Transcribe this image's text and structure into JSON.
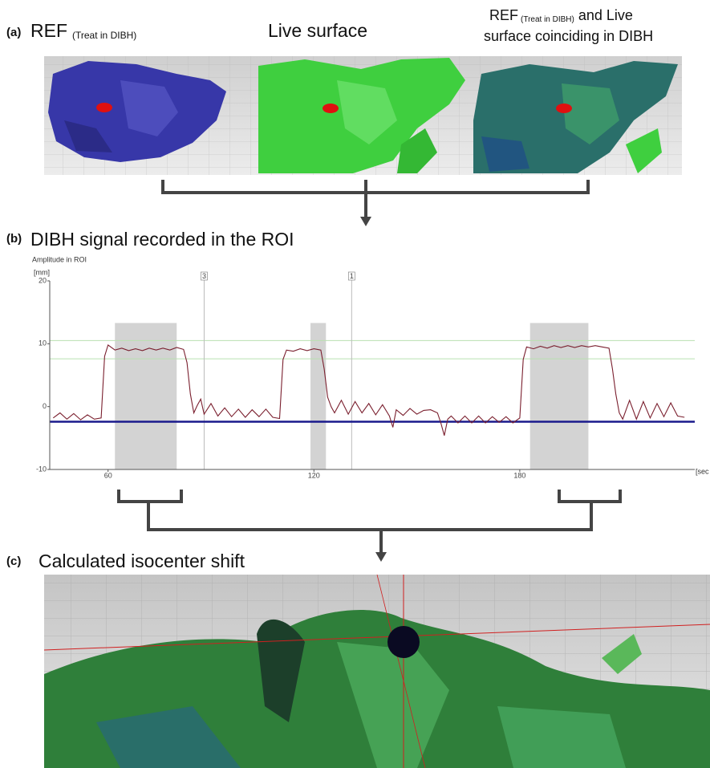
{
  "panel_a": {
    "label": "(a)",
    "ref_title": "REF",
    "ref_subscript": "(Treat in DIBH)",
    "live_title": "Live surface",
    "overlay_title_1": "REF",
    "overlay_subscript": "(Treat in DIBH)",
    "overlay_title_2": "and Live",
    "overlay_title_3": "surface coinciding in DIBH"
  },
  "panel_b": {
    "label": "(b)",
    "title": "DIBH signal recorded in the ROI"
  },
  "chart_data": {
    "type": "line",
    "y_axis_label": "Amplitude in ROI",
    "y_unit": "[mm]",
    "x_unit": "[sec",
    "xlim": [
      43,
      231
    ],
    "ylim": [
      -10,
      20
    ],
    "xticks": [
      60,
      120,
      180
    ],
    "yticks": [
      -10,
      0,
      10,
      20
    ],
    "x": [
      44,
      46,
      48,
      50,
      52,
      54,
      56,
      58,
      59,
      60,
      62,
      64,
      66,
      68,
      70,
      72,
      74,
      76,
      78,
      80,
      82,
      83,
      84,
      85,
      86,
      87,
      88,
      90,
      92,
      94,
      96,
      98,
      100,
      102,
      104,
      106,
      108,
      110,
      111,
      112,
      114,
      116,
      118,
      120,
      122,
      123,
      124,
      125,
      126,
      128,
      130,
      132,
      134,
      136,
      138,
      140,
      142,
      143,
      144,
      146,
      148,
      150,
      152,
      154,
      156,
      157,
      158,
      159,
      160,
      162,
      164,
      166,
      168,
      170,
      172,
      174,
      176,
      178,
      180,
      181,
      182,
      184,
      186,
      188,
      190,
      192,
      194,
      196,
      198,
      200,
      202,
      204,
      206,
      207,
      208,
      209,
      210,
      212,
      214,
      216,
      218,
      220,
      222,
      224,
      226,
      228
    ],
    "series": [
      {
        "color": "#7a1f2e",
        "values": [
          -1.8,
          -1.0,
          -2.0,
          -1.1,
          -2.1,
          -1.3,
          -2.0,
          -1.8,
          8.0,
          9.8,
          9.0,
          9.3,
          8.9,
          9.2,
          8.9,
          9.3,
          9.0,
          9.3,
          9.0,
          9.4,
          9.1,
          7.0,
          2.0,
          -1.0,
          0.2,
          1.2,
          -1.2,
          0.5,
          -1.5,
          -0.2,
          -1.6,
          -0.4,
          -1.7,
          -0.5,
          -1.6,
          -0.4,
          -1.7,
          -1.9,
          7.5,
          9.0,
          8.8,
          9.2,
          8.9,
          9.2,
          9.0,
          6.0,
          1.5,
          0.0,
          -1.0,
          1.0,
          -1.2,
          0.8,
          -1.0,
          0.5,
          -1.3,
          0.3,
          -1.5,
          -3.3,
          -0.5,
          -1.4,
          -0.3,
          -1.2,
          -0.6,
          -0.5,
          -1.0,
          -2.6,
          -4.6,
          -2.0,
          -1.5,
          -2.6,
          -1.5,
          -2.6,
          -1.5,
          -2.6,
          -1.6,
          -2.5,
          -1.6,
          -2.6,
          -1.8,
          7.5,
          9.5,
          9.2,
          9.6,
          9.3,
          9.7,
          9.4,
          9.7,
          9.4,
          9.7,
          9.5,
          9.7,
          9.5,
          9.3,
          6.0,
          2.0,
          -1.0,
          -2.0,
          1.0,
          -2.0,
          0.8,
          -1.8,
          0.5,
          -1.6,
          0.6,
          -1.5,
          -1.7
        ]
      }
    ],
    "shaded_regions": [
      [
        62,
        80
      ],
      [
        119,
        123.5
      ],
      [
        183,
        200
      ]
    ],
    "shade_color": "#d3d3d3",
    "threshold_lines": [
      10.5,
      7.6
    ],
    "threshold_color": "#b9e0b0",
    "baseline": -2.4,
    "baseline_color": "#1a1a8c",
    "markers": [
      {
        "x": 88,
        "label": "3"
      },
      {
        "x": 131,
        "label": "1"
      }
    ]
  },
  "panel_c": {
    "label": "(c)",
    "title": "Calculated isocenter shift"
  }
}
